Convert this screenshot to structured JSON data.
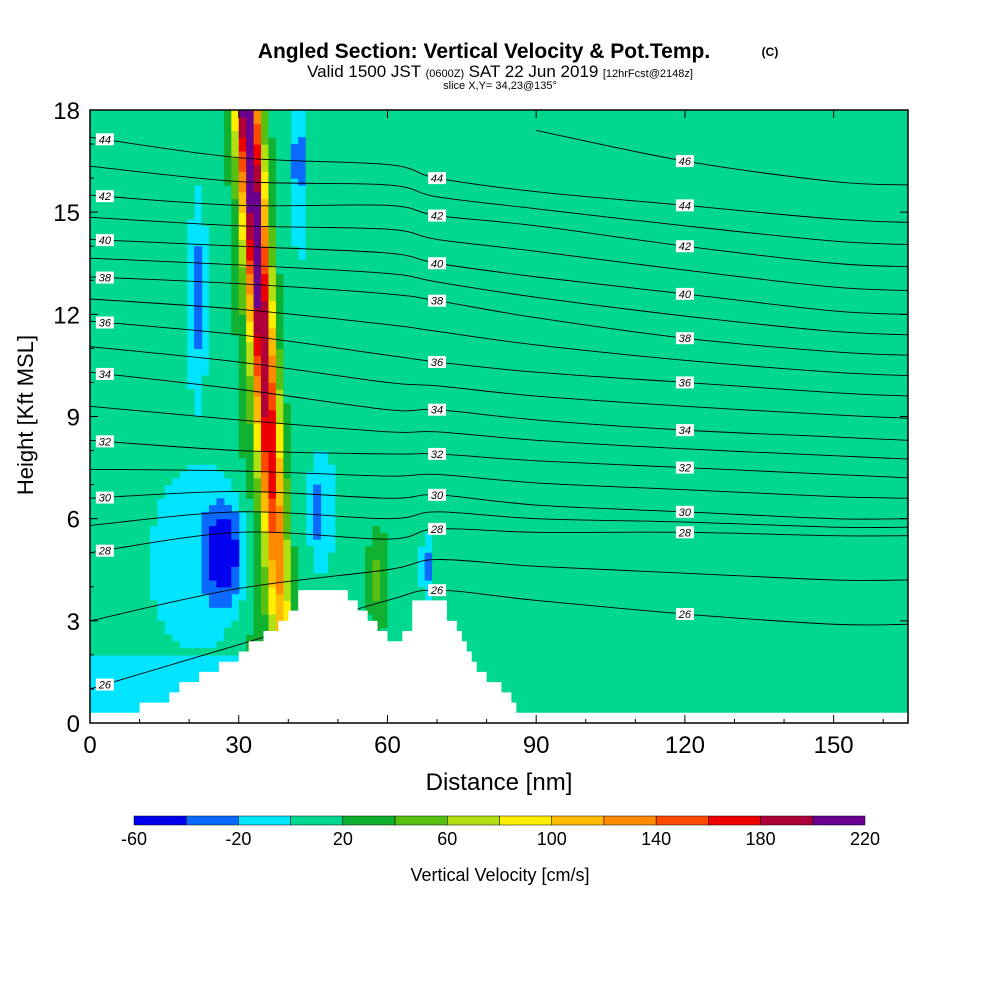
{
  "chart_data": {
    "type": "contour",
    "title": "Angled Section: Vertical Velocity & Pot.Temp.",
    "title_mark": "(C)",
    "subtitle": {
      "valid": "Valid 1500 JST",
      "zulu": "(0600Z)",
      "date": "SAT 22 Jun 2019",
      "forecast": "[12hrFcst@2148z]"
    },
    "slice": "slice X,Y= 34,23@135°",
    "xlabel": "Distance [nm]",
    "ylabel": "Height [Kft MSL]",
    "xlim": [
      0,
      165
    ],
    "ylim": [
      0,
      18
    ],
    "x_ticks": [
      "0",
      "30",
      "60",
      "90",
      "120",
      "150"
    ],
    "x_tick_values": [
      0,
      30,
      60,
      90,
      120,
      150
    ],
    "y_ticks": [
      "0",
      "3",
      "6",
      "9",
      "12",
      "15",
      "18"
    ],
    "y_tick_values": [
      0,
      3,
      6,
      9,
      12,
      15,
      18
    ],
    "colorbar": {
      "label": "Vertical Velocity [cm/s]",
      "levels": [
        -60,
        -40,
        -20,
        0,
        20,
        40,
        60,
        80,
        100,
        120,
        140,
        160,
        180,
        200,
        220
      ],
      "tick_labels": [
        "-60",
        "-20",
        "20",
        "60",
        "100",
        "140",
        "180",
        "220"
      ],
      "colors": [
        "#0000ee",
        "#0a6aff",
        "#00e5ff",
        "#00d890",
        "#10b030",
        "#58c010",
        "#b0e010",
        "#ffee00",
        "#ffbb00",
        "#ff8a00",
        "#ff4800",
        "#ee0000",
        "#b0003a",
        "#6a0090"
      ]
    },
    "background_vv_cms": 0,
    "vv_features": [
      {
        "name": "main updraft",
        "x": [
          32,
          33,
          34,
          35,
          36,
          37,
          38,
          39,
          40
        ],
        "ybase": 2.9,
        "ytop": 18,
        "peak": 215
      },
      {
        "name": "downdraft",
        "x": 28,
        "y": 4.5,
        "min": -70
      },
      {
        "name": "upper downdraft",
        "x": 42,
        "y": 16,
        "min": -45
      }
    ],
    "theta_contours": [
      {
        "label": "26",
        "x": [
          0,
          30,
          60,
          70,
          90,
          120,
          150,
          165
        ],
        "y": [
          1.0,
          2.3,
          3.6,
          3.9,
          3.6,
          3.2,
          2.9,
          2.9
        ]
      },
      {
        "label": "28",
        "x": [
          0,
          30,
          60,
          70,
          90,
          120,
          150,
          165
        ],
        "y": [
          5.0,
          5.6,
          5.4,
          5.7,
          5.6,
          5.6,
          5.5,
          5.5
        ]
      },
      {
        "label": "30",
        "x": [
          0,
          30,
          60,
          70,
          90,
          120,
          150,
          165
        ],
        "y": [
          6.6,
          6.8,
          6.6,
          6.7,
          6.4,
          6.2,
          6.0,
          6.0
        ]
      },
      {
        "label": "32",
        "x": [
          0,
          30,
          60,
          70,
          90,
          120,
          150,
          165
        ],
        "y": [
          8.3,
          8.0,
          7.9,
          7.9,
          7.7,
          7.5,
          7.3,
          7.2
        ]
      },
      {
        "label": "34",
        "x": [
          0,
          30,
          60,
          70,
          90,
          120,
          150,
          165
        ],
        "y": [
          10.3,
          9.8,
          9.2,
          9.2,
          8.9,
          8.6,
          8.4,
          8.3
        ]
      },
      {
        "label": "36",
        "x": [
          0,
          30,
          60,
          70,
          90,
          120,
          150,
          165
        ],
        "y": [
          11.8,
          11.4,
          10.8,
          10.6,
          10.3,
          10.0,
          9.7,
          9.6
        ]
      },
      {
        "label": "38",
        "x": [
          0,
          30,
          60,
          70,
          90,
          120,
          150,
          165
        ],
        "y": [
          13.1,
          12.9,
          12.6,
          12.4,
          11.9,
          11.3,
          10.9,
          10.8
        ]
      },
      {
        "label": "40",
        "x": [
          0,
          30,
          60,
          70,
          90,
          120,
          150,
          165
        ],
        "y": [
          14.2,
          14.0,
          13.8,
          13.5,
          13.1,
          12.6,
          12.1,
          12.0
        ]
      },
      {
        "label": "42",
        "x": [
          0,
          30,
          60,
          70,
          90,
          120,
          150,
          165
        ],
        "y": [
          15.5,
          15.2,
          15.2,
          14.9,
          14.6,
          14.0,
          13.5,
          13.4
        ]
      },
      {
        "label": "44",
        "x": [
          0,
          30,
          60,
          70,
          90,
          120,
          150,
          165
        ],
        "y": [
          17.2,
          16.6,
          16.4,
          16.0,
          15.6,
          15.2,
          14.8,
          14.7
        ]
      },
      {
        "label": "46",
        "x": [
          90,
          120,
          150,
          165
        ],
        "y": [
          17.4,
          16.5,
          15.9,
          15.8
        ]
      }
    ],
    "terrain": {
      "x": [
        0,
        10,
        10,
        16,
        16,
        18,
        18,
        22,
        22,
        26,
        26,
        30,
        30,
        32,
        32,
        35,
        35,
        38,
        38,
        40,
        40,
        42,
        42,
        52,
        52,
        54,
        54,
        56,
        56,
        58,
        58,
        60,
        60,
        63,
        63,
        65,
        65,
        72,
        72,
        74,
        74,
        75,
        75,
        76,
        76,
        77,
        77,
        78,
        78,
        80,
        80,
        83,
        83,
        85,
        85,
        86,
        86,
        88,
        88,
        90,
        90,
        165
      ],
      "y": [
        0.3,
        0.3,
        0.6,
        0.6,
        0.9,
        0.9,
        1.2,
        1.2,
        1.5,
        1.5,
        1.8,
        1.8,
        2.1,
        2.1,
        2.4,
        2.4,
        2.7,
        2.7,
        3.0,
        3.0,
        3.3,
        3.3,
        3.9,
        3.9,
        3.6,
        3.6,
        3.3,
        3.3,
        3.0,
        3.0,
        2.7,
        2.7,
        2.4,
        2.4,
        2.7,
        2.7,
        3.6,
        3.6,
        3.0,
        3.0,
        2.7,
        2.7,
        2.4,
        2.4,
        2.1,
        2.1,
        1.8,
        1.8,
        1.5,
        1.5,
        1.2,
        1.2,
        0.9,
        0.9,
        0.6,
        0.6,
        0.3,
        0.3,
        0.3,
        0.3,
        0.3,
        0.3
      ]
    }
  }
}
